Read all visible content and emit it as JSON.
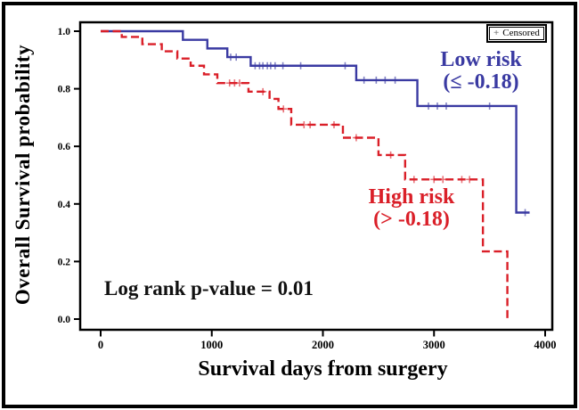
{
  "chart_data": {
    "type": "line",
    "subtype": "kaplan-meier-step-curves",
    "title": "",
    "xlabel": "Survival days from surgery",
    "ylabel": "Overall Survival probability",
    "xlim": [
      0,
      4000
    ],
    "ylim": [
      0.0,
      1.0
    ],
    "x_ticks": [
      0,
      1000,
      2000,
      3000,
      4000
    ],
    "y_ticks": [
      1.0,
      0.8,
      0.6,
      0.4,
      0.2,
      0.0
    ],
    "grid": false,
    "annotations": {
      "log_rank": "Log rank p-value = 0.01"
    },
    "series_labels": {
      "low": {
        "line1": "Low risk",
        "line2": "(≤ -0.18)"
      },
      "high": {
        "line1": "High risk",
        "line2": "(> -0.18)"
      }
    },
    "series": [
      {
        "name": "Low risk (≤ -0.18)",
        "color": "#3A3AA2",
        "style": "solid",
        "steps": [
          [
            0,
            1.0
          ],
          [
            740,
            0.97
          ],
          [
            960,
            0.94
          ],
          [
            1140,
            0.91
          ],
          [
            1350,
            0.88
          ],
          [
            2300,
            0.83
          ],
          [
            2850,
            0.74
          ],
          [
            3740,
            0.37
          ]
        ],
        "end_day": 3860,
        "censored": [
          [
            1170,
            0.91
          ],
          [
            1220,
            0.91
          ],
          [
            1390,
            0.88
          ],
          [
            1430,
            0.88
          ],
          [
            1460,
            0.88
          ],
          [
            1500,
            0.88
          ],
          [
            1530,
            0.88
          ],
          [
            1570,
            0.88
          ],
          [
            1640,
            0.88
          ],
          [
            1800,
            0.88
          ],
          [
            2200,
            0.88
          ],
          [
            2370,
            0.83
          ],
          [
            2480,
            0.83
          ],
          [
            2560,
            0.83
          ],
          [
            2650,
            0.83
          ],
          [
            2950,
            0.74
          ],
          [
            3030,
            0.74
          ],
          [
            3110,
            0.74
          ],
          [
            3500,
            0.74
          ],
          [
            3820,
            0.37
          ]
        ]
      },
      {
        "name": "High risk (> -0.18)",
        "color": "#DA1F28",
        "style": "dashed",
        "steps": [
          [
            0,
            1.0
          ],
          [
            190,
            0.98
          ],
          [
            375,
            0.955
          ],
          [
            550,
            0.93
          ],
          [
            690,
            0.905
          ],
          [
            810,
            0.88
          ],
          [
            930,
            0.85
          ],
          [
            1050,
            0.82
          ],
          [
            1330,
            0.79
          ],
          [
            1520,
            0.765
          ],
          [
            1600,
            0.73
          ],
          [
            1715,
            0.675
          ],
          [
            2180,
            0.63
          ],
          [
            2500,
            0.57
          ],
          [
            2740,
            0.485
          ],
          [
            3440,
            0.235
          ],
          [
            3660,
            0.0
          ]
        ],
        "end_day": 3660,
        "censored": [
          [
            1160,
            0.82
          ],
          [
            1205,
            0.82
          ],
          [
            1250,
            0.82
          ],
          [
            1460,
            0.79
          ],
          [
            1645,
            0.73
          ],
          [
            1830,
            0.675
          ],
          [
            1885,
            0.675
          ],
          [
            2100,
            0.675
          ],
          [
            2300,
            0.63
          ],
          [
            2610,
            0.57
          ],
          [
            2820,
            0.485
          ],
          [
            3000,
            0.485
          ],
          [
            3080,
            0.485
          ],
          [
            3250,
            0.485
          ],
          [
            3320,
            0.485
          ]
        ]
      }
    ]
  },
  "legend": {
    "symbol": "+",
    "label": "Censored"
  }
}
